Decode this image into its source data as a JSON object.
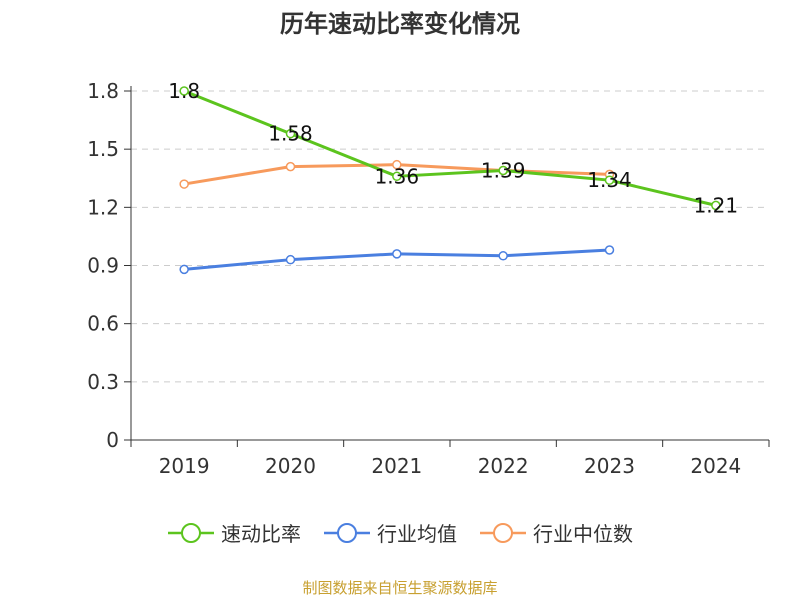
{
  "chart_data": {
    "type": "line",
    "title": "历年速动比率变化情况",
    "categories": [
      "2019",
      "2020",
      "2021",
      "2022",
      "2023",
      "2024"
    ],
    "ylim": [
      0,
      1.8
    ],
    "yticks": [
      "0",
      "0.3",
      "0.6",
      "0.9",
      "1.2",
      "1.5",
      "1.8"
    ],
    "grid": true,
    "legend_position": "bottom",
    "series": [
      {
        "name": "速动比率",
        "color": "#5cc41e",
        "values": [
          1.8,
          1.58,
          1.36,
          1.39,
          1.34,
          1.21
        ],
        "labels": [
          "1.8",
          "1.58",
          "1.36",
          "1.39",
          "1.34",
          "1.21"
        ]
      },
      {
        "name": "行业均值",
        "color": "#4a7fe0",
        "values": [
          0.88,
          0.93,
          0.96,
          0.95,
          0.98,
          null
        ]
      },
      {
        "name": "行业中位数",
        "color": "#f79a5c",
        "values": [
          1.32,
          1.41,
          1.42,
          1.39,
          1.37,
          null
        ]
      }
    ]
  },
  "source": "制图数据来自恒生聚源数据库"
}
